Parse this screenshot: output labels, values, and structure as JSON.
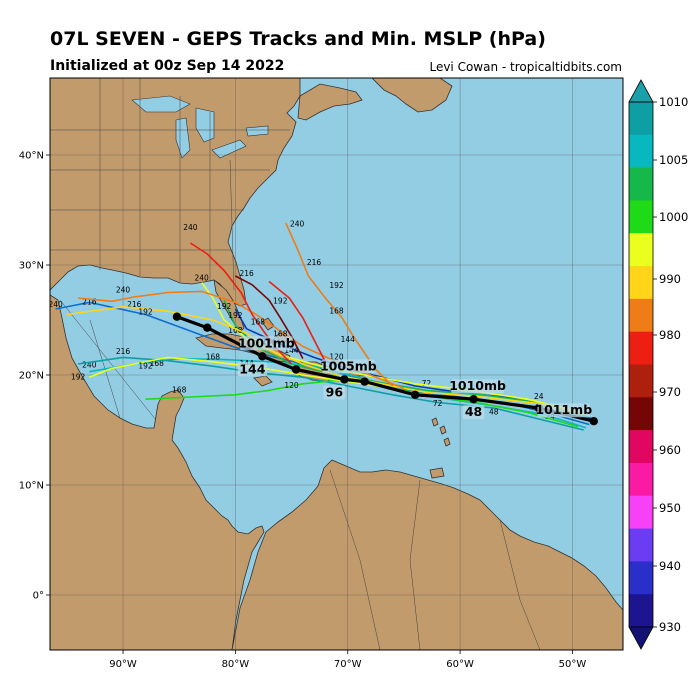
{
  "header": {
    "title": "07L SEVEN - GEPS Tracks and Min. MSLP (hPa)",
    "subtitle": "Initialized at 00z Sep 14 2022",
    "credit": "Levi Cowan - tropicaltidbits.com"
  },
  "map": {
    "lon_range": [
      -96.5,
      -45.5
    ],
    "lat_range": [
      -5.0,
      47.0
    ],
    "lon_ticks": [
      {
        "value": -90,
        "label": "90°W"
      },
      {
        "value": -80,
        "label": "80°W"
      },
      {
        "value": -70,
        "label": "70°W"
      },
      {
        "value": -60,
        "label": "60°W"
      },
      {
        "value": -50,
        "label": "50°W"
      }
    ],
    "lat_ticks": [
      {
        "value": 0,
        "label": "0°"
      },
      {
        "value": 10,
        "label": "10°N"
      },
      {
        "value": 20,
        "label": "20°N"
      },
      {
        "value": 30,
        "label": "30°N"
      },
      {
        "value": 40,
        "label": "40°N"
      }
    ],
    "colors": {
      "ocean": "#93cde3",
      "land": "#c29b6c",
      "border": "#333333",
      "grid": "#555555"
    }
  },
  "colorbar": {
    "ticks": [
      1010,
      1005,
      1000,
      990,
      980,
      970,
      960,
      950,
      940,
      930
    ],
    "colors": [
      "#0e9fa5",
      "#08b8bf",
      "#17b84a",
      "#1fda17",
      "#eaff1d",
      "#ffd419",
      "#f07c17",
      "#ec1f12",
      "#af1f0d",
      "#760505",
      "#e10760",
      "#fb1aa4",
      "#f841f6",
      "#6a3cf2",
      "#2a2fc9",
      "#1d1490"
    ]
  },
  "mean_track": {
    "points": [
      {
        "lon": -48.1,
        "lat": 15.8,
        "label": "1011mb"
      },
      {
        "lon": -53.0,
        "lat": 17.0
      },
      {
        "lon": -58.8,
        "lat": 17.8,
        "label": "48"
      },
      {
        "lon": -58.8,
        "lat": 17.8,
        "label": "1010mb"
      },
      {
        "lon": -64.0,
        "lat": 18.2
      },
      {
        "lon": -68.5,
        "lat": 19.4
      },
      {
        "lon": -70.3,
        "lat": 19.6,
        "label": "96"
      },
      {
        "lon": -70.3,
        "lat": 19.6,
        "label": "1005mb"
      },
      {
        "lon": -74.6,
        "lat": 20.5
      },
      {
        "lon": -77.6,
        "lat": 21.7,
        "label": "144"
      },
      {
        "lon": -77.6,
        "lat": 21.7,
        "label": "1001mb"
      },
      {
        "lon": -82.5,
        "lat": 24.3
      },
      {
        "lon": -85.2,
        "lat": 25.3
      }
    ]
  },
  "members": [
    {
      "color": "#0d6dd1",
      "points": [
        [
          -48.5,
          15.5
        ],
        [
          -52,
          16.5
        ],
        [
          -56,
          17.5
        ],
        [
          -60,
          18.0
        ],
        [
          -64,
          18.5
        ],
        [
          -68,
          19.5
        ],
        [
          -72,
          20.5
        ],
        [
          -76,
          21.5
        ],
        [
          -80,
          22.5
        ],
        [
          -84,
          24.0
        ],
        [
          -88,
          25.5
        ],
        [
          -93,
          26.6
        ],
        [
          -96,
          26.0
        ]
      ],
      "labels": [
        [
          -53,
          17.8,
          "24"
        ],
        [
          -72,
          20.3,
          "120"
        ],
        [
          -89,
          26.2,
          "216"
        ],
        [
          -96,
          26.2,
          "240"
        ]
      ]
    },
    {
      "color": "#0c3ab2",
      "points": [
        [
          -48.2,
          16.0
        ],
        [
          -52,
          17.2
        ],
        [
          -56,
          18.0
        ],
        [
          -60,
          18.4
        ],
        [
          -64,
          19.0
        ],
        [
          -67,
          19.8
        ],
        [
          -70,
          20.6
        ],
        [
          -73,
          21.6
        ],
        [
          -76,
          22.8
        ],
        [
          -79,
          24.2
        ],
        [
          -80,
          26.0
        ]
      ],
      "labels": [
        [
          -53,
          17.0,
          "24"
        ],
        [
          -63,
          19.0,
          "72"
        ],
        [
          -71,
          21.4,
          "120"
        ]
      ]
    },
    {
      "color": "#08b8bf",
      "points": [
        [
          -48.8,
          15.2
        ],
        [
          -52.5,
          16.4
        ],
        [
          -57,
          17.2
        ],
        [
          -61,
          17.8
        ],
        [
          -65,
          18.5
        ],
        [
          -69,
          19.8
        ],
        [
          -73,
          20.8
        ],
        [
          -77,
          21.2
        ],
        [
          -81,
          21.4
        ],
        [
          -85,
          21.5
        ],
        [
          -89,
          21.0
        ],
        [
          -93,
          20.3
        ]
      ],
      "labels": [
        [
          -52,
          16.0,
          "24"
        ],
        [
          -79,
          20.8,
          "144"
        ],
        [
          -87,
          20.8,
          "168"
        ],
        [
          -93,
          20.7,
          "240"
        ]
      ]
    },
    {
      "color": "#0e9fa5",
      "points": [
        [
          -49,
          15.0
        ],
        [
          -53,
          16.0
        ],
        [
          -57,
          17.0
        ],
        [
          -62,
          17.5
        ],
        [
          -66,
          18.2
        ],
        [
          -70,
          19.0
        ],
        [
          -74,
          19.8
        ],
        [
          -78,
          20.2
        ],
        [
          -82,
          20.8
        ],
        [
          -86,
          21.3
        ],
        [
          -90,
          21.6
        ],
        [
          -94,
          21.0
        ]
      ],
      "labels": [
        [
          -57,
          16.4,
          "48"
        ],
        [
          -82,
          21.4,
          "168"
        ],
        [
          -90,
          21.9,
          "216"
        ],
        [
          -94,
          19.6,
          "192"
        ]
      ]
    },
    {
      "color": "#1fda17",
      "points": [
        [
          -49.5,
          15.3
        ],
        [
          -54,
          16.6
        ],
        [
          -58,
          17.4
        ],
        [
          -62,
          18.0
        ],
        [
          -65,
          18.6
        ],
        [
          -68,
          19.2
        ],
        [
          -71,
          19.5
        ],
        [
          -74,
          19.2
        ],
        [
          -77,
          18.6
        ],
        [
          -80,
          18.2
        ],
        [
          -84,
          18.0
        ],
        [
          -88,
          17.8
        ]
      ],
      "labels": [
        [
          -62,
          17.2,
          "72"
        ],
        [
          -75,
          18.8,
          "120"
        ],
        [
          -85,
          18.4,
          "168"
        ]
      ]
    },
    {
      "color": "#17b84a",
      "points": [
        [
          -48.6,
          16.2
        ],
        [
          -53,
          17.5
        ],
        [
          -58,
          18.2
        ],
        [
          -63,
          18.6
        ],
        [
          -67,
          19.3
        ],
        [
          -71,
          20.0
        ],
        [
          -75,
          21.0
        ],
        [
          -78,
          22.5
        ],
        [
          -80,
          24.5
        ],
        [
          -81,
          26.8
        ]
      ],
      "labels": [
        [
          -75,
          22.0,
          "144"
        ],
        [
          -80,
          25.2,
          "192"
        ]
      ]
    },
    {
      "color": "#eaff1d",
      "points": [
        [
          -49.2,
          16.6
        ],
        [
          -54,
          17.8
        ],
        [
          -59,
          18.6
        ],
        [
          -64,
          19.2
        ],
        [
          -68,
          19.9
        ],
        [
          -72,
          20.7
        ],
        [
          -76,
          21.8
        ],
        [
          -79,
          23.3
        ],
        [
          -81,
          25.0
        ],
        [
          -82,
          27.0
        ],
        [
          -83,
          28.4
        ]
      ],
      "labels": [
        [
          -80,
          23.8,
          "168"
        ],
        [
          -83,
          28.6,
          "240"
        ]
      ]
    },
    {
      "color": "#eaff1d",
      "points": [
        [
          -66,
          18.8
        ],
        [
          -70,
          19.4
        ],
        [
          -74,
          20.0
        ],
        [
          -78,
          20.7
        ],
        [
          -82,
          21.2
        ],
        [
          -86,
          21.6
        ],
        [
          -89,
          21.0
        ],
        [
          -91,
          20.6
        ],
        [
          -93,
          19.8
        ]
      ],
      "labels": [
        [
          -88,
          20.6,
          "192"
        ]
      ]
    },
    {
      "color": "#ffd419",
      "points": [
        [
          -49,
          16.4
        ],
        [
          -53,
          17.4
        ],
        [
          -58,
          18.0
        ],
        [
          -63,
          18.4
        ],
        [
          -67,
          19.2
        ],
        [
          -71,
          20.0
        ],
        [
          -74,
          21.0
        ],
        [
          -77,
          22.3
        ],
        [
          -79,
          23.8
        ],
        [
          -82,
          25.0
        ],
        [
          -86,
          25.8
        ],
        [
          -90,
          26.2
        ],
        [
          -95,
          25.5
        ]
      ],
      "labels": [
        [
          -77,
          22.8,
          "144"
        ],
        [
          -88,
          25.5,
          "192"
        ],
        [
          -93,
          26.4,
          "216"
        ]
      ]
    },
    {
      "color": "#f07c17",
      "points": [
        [
          -65,
          18.8
        ],
        [
          -68,
          20.0
        ],
        [
          -71,
          21.2
        ],
        [
          -74,
          22.6
        ],
        [
          -76,
          24.0
        ],
        [
          -78,
          25.4
        ],
        [
          -80,
          26.6
        ],
        [
          -83,
          27.6
        ],
        [
          -86,
          27.5
        ],
        [
          -89,
          27.1
        ],
        [
          -91,
          26.7
        ],
        [
          -94,
          27.0
        ]
      ],
      "labels": [
        [
          -76,
          23.5,
          "168"
        ],
        [
          -81,
          26.0,
          "192"
        ],
        [
          -90,
          27.5,
          "240"
        ]
      ]
    },
    {
      "color": "#f07c17",
      "points": [
        [
          -66,
          19.0
        ],
        [
          -67.5,
          20.5
        ],
        [
          -68.5,
          22.0
        ],
        [
          -69.5,
          23.5
        ],
        [
          -70.5,
          25.2
        ],
        [
          -72,
          27.0
        ],
        [
          -73.5,
          29.0
        ],
        [
          -74.5,
          31.5
        ],
        [
          -75.5,
          33.8
        ]
      ],
      "labels": [
        [
          -70,
          23.0,
          "144"
        ],
        [
          -71,
          25.6,
          "168"
        ],
        [
          -71,
          27.9,
          "192"
        ],
        [
          -73,
          30.0,
          "216"
        ],
        [
          -74.5,
          33.5,
          "240"
        ]
      ]
    },
    {
      "color": "#ec1f12",
      "points": [
        [
          -75,
          21.0
        ],
        [
          -76.5,
          22.6
        ],
        [
          -77.5,
          24.0
        ],
        [
          -78.5,
          25.5
        ],
        [
          -79.5,
          27.5
        ],
        [
          -81,
          29.5
        ],
        [
          -82.5,
          31.0
        ],
        [
          -84,
          32.0
        ]
      ],
      "labels": [
        [
          -78,
          24.6,
          "168"
        ],
        [
          -84,
          33.2,
          "240"
        ]
      ]
    },
    {
      "color": "#760505",
      "points": [
        [
          -74,
          21.5
        ],
        [
          -75,
          23.5
        ],
        [
          -76,
          25.2
        ],
        [
          -77,
          26.8
        ],
        [
          -78.5,
          28.2
        ],
        [
          -80,
          29.0
        ]
      ],
      "labels": [
        [
          -79,
          29.0,
          "216"
        ]
      ]
    },
    {
      "color": "#ec1f12",
      "points": [
        [
          -72,
          21.2
        ],
        [
          -73,
          23.2
        ],
        [
          -74,
          25.2
        ],
        [
          -75.2,
          27.0
        ],
        [
          -77,
          28.5
        ]
      ],
      "labels": [
        [
          -76,
          26.5,
          "192"
        ]
      ]
    }
  ]
}
